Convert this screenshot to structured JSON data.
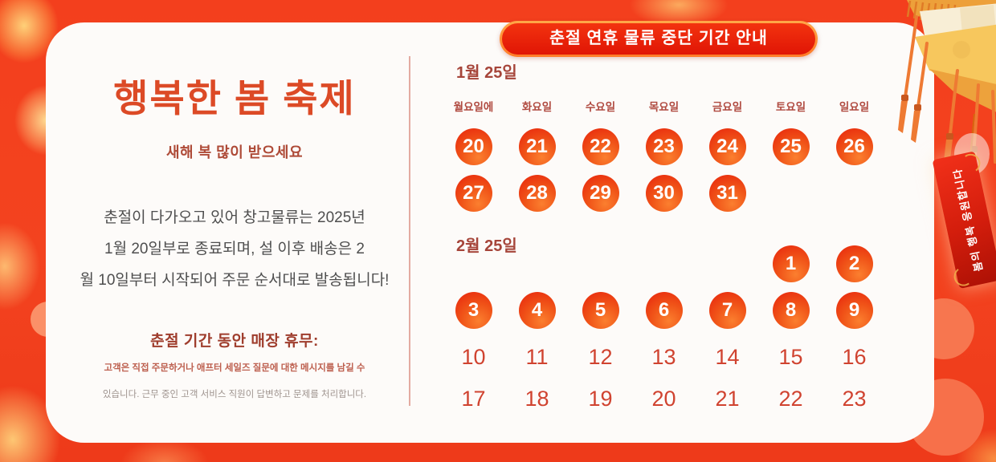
{
  "header_badge": {
    "label": "춘절 연휴 물류 중단 기간 안내"
  },
  "left_panel": {
    "title": "행복한 봄 축제",
    "subtitle": "새해 복 많이 받으세요",
    "body_lines": [
      "춘절이 다가오고 있어 창고물류는 2025년",
      "1월 20일부로 종료되며, 설 이후 배송은 2",
      "월 10일부터 시작되어 주문 순서대로 발송됩니다!"
    ],
    "notice_title": "춘절 기간 동안 매장 휴무:",
    "notice_line1": "고객은 직접 주문하거나 애프터 세일즈 질문에 대한 메시지를 남길 수",
    "notice_line2": "있습니다. 근무 중인 고객 서비스 직원이 답변하고 문제를 처리합니다."
  },
  "calendar": {
    "weekdays": [
      "월요일에",
      "화요일",
      "수요일",
      "목요일",
      "금요일",
      "토요일",
      "일요일"
    ],
    "january": {
      "label": "1월 25일",
      "rows": [
        [
          {
            "d": "20",
            "c": true
          },
          {
            "d": "21",
            "c": true
          },
          {
            "d": "22",
            "c": true
          },
          {
            "d": "23",
            "c": true
          },
          {
            "d": "24",
            "c": true
          },
          {
            "d": "25",
            "c": true
          },
          {
            "d": "26",
            "c": true
          }
        ],
        [
          {
            "d": "27",
            "c": true
          },
          {
            "d": "28",
            "c": true
          },
          {
            "d": "29",
            "c": true
          },
          {
            "d": "30",
            "c": true
          },
          {
            "d": "31",
            "c": true
          },
          null,
          null
        ]
      ]
    },
    "february": {
      "label": "2월 25일",
      "rows": [
        [
          null,
          null,
          null,
          null,
          null,
          {
            "d": "1",
            "c": true
          },
          {
            "d": "2",
            "c": true
          }
        ],
        [
          {
            "d": "3",
            "c": true
          },
          {
            "d": "4",
            "c": true
          },
          {
            "d": "5",
            "c": true
          },
          {
            "d": "6",
            "c": true
          },
          {
            "d": "7",
            "c": true
          },
          {
            "d": "8",
            "c": true
          },
          {
            "d": "9",
            "c": true
          }
        ],
        [
          {
            "d": "10",
            "c": false
          },
          {
            "d": "11",
            "c": false
          },
          {
            "d": "12",
            "c": false
          },
          {
            "d": "13",
            "c": false
          },
          {
            "d": "14",
            "c": false
          },
          {
            "d": "15",
            "c": false
          },
          {
            "d": "16",
            "c": false
          }
        ],
        [
          {
            "d": "17",
            "c": false
          },
          {
            "d": "18",
            "c": false
          },
          {
            "d": "19",
            "c": false
          },
          {
            "d": "20",
            "c": false
          },
          {
            "d": "21",
            "c": false
          },
          {
            "d": "22",
            "c": false
          },
          {
            "d": "23",
            "c": false
          }
        ]
      ]
    }
  },
  "decor": {
    "hanging_tag_text": "봄의 행복 응원합니다"
  },
  "colors": {
    "background": "#f3431f",
    "card": "#fdfbf9",
    "title_orange": "#dc4a26",
    "maroon_text": "#a6453a",
    "badge_fill": "#e92810",
    "badge_border": "#ff9335",
    "holiday_circle": "#ee3912",
    "plain_date_red": "#d04330",
    "divider_pink": "#e3aba2"
  }
}
